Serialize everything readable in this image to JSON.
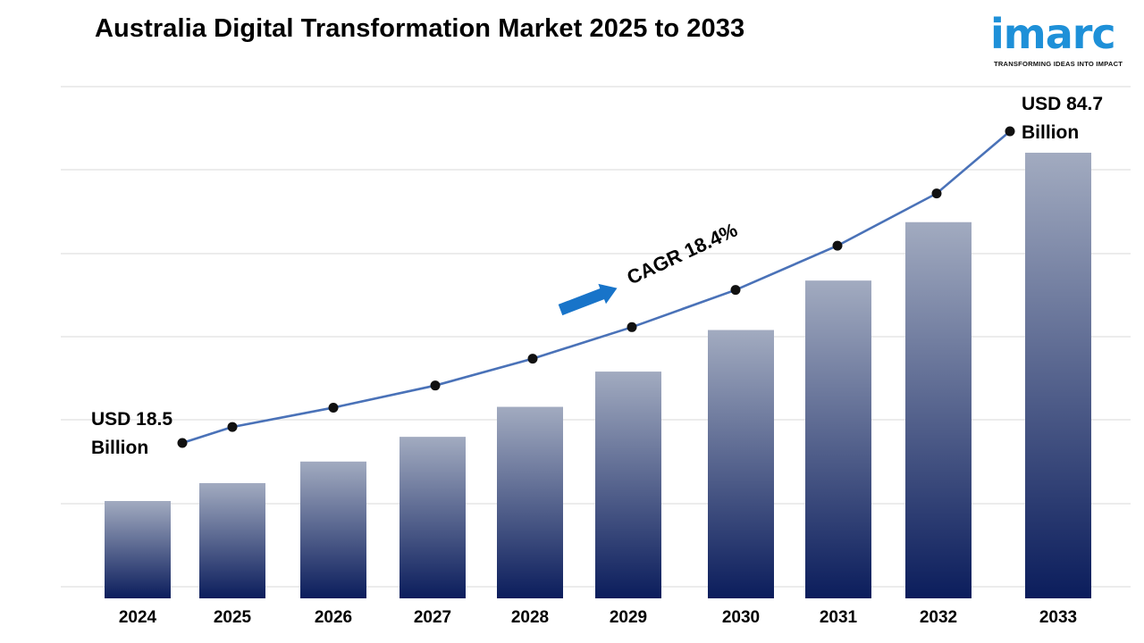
{
  "title": "Australia Digital Transformation Market 2025 to 2033",
  "brand": {
    "name": "imarc",
    "tagline": "TRANSFORMING IDEAS INTO IMPACT",
    "color": "#1e90d8"
  },
  "chart_data": {
    "type": "bar",
    "categories": [
      "2024",
      "2025",
      "2026",
      "2027",
      "2028",
      "2029",
      "2030",
      "2031",
      "2032",
      "2033"
    ],
    "values": [
      18.5,
      21.9,
      26.0,
      30.7,
      36.4,
      43.1,
      51.0,
      60.4,
      71.5,
      84.7
    ],
    "line_overlay": true,
    "annotations": {
      "start": [
        "USD 18.5",
        "Billion"
      ],
      "end": [
        "USD 84.7",
        "Billion"
      ],
      "cagr": "CAGR 18.4%"
    },
    "colors": {
      "bar_top": "#a2abc0",
      "bar_bottom": "#0b1d5c",
      "line": "#4a72b8",
      "arrow": "#1874c9",
      "grid": "#d9d9d9"
    },
    "grid": true,
    "legend": "none"
  }
}
